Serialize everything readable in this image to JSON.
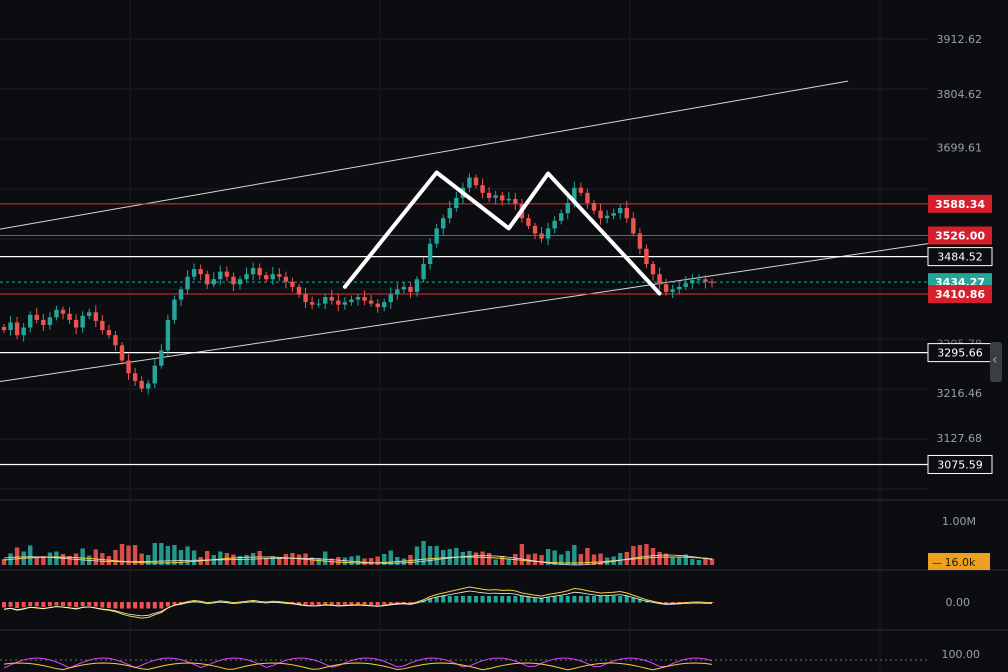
{
  "colors": {
    "background": "#0c0d10",
    "up": "#26a69a",
    "down": "#ef5350",
    "resistance_line": "#e0303a",
    "level_line": "#ffffff",
    "last_price_badge": "#26a69a",
    "volume_badge": "#f0a020",
    "ma_yellow": "#f2d23c",
    "ma_pink": "#e040fb",
    "axis_text": "#9aa0a8"
  },
  "price_axis": {
    "ticks": [
      "3912.62",
      "3804.62",
      "3699.61",
      "3216.46",
      "3127.68"
    ],
    "hidden_tick_fragments": [
      "3295.78"
    ]
  },
  "horizontal_levels": [
    {
      "label": "3588.34",
      "value": 3588.34,
      "style": "red-badge"
    },
    {
      "label": "3526.00",
      "value": 3526.0,
      "style": "red-badge"
    },
    {
      "label": "3484.52",
      "value": 3484.52,
      "style": "white-box"
    },
    {
      "label": "3434.27",
      "value": 3434.27,
      "style": "last-price"
    },
    {
      "label": "3410.86",
      "value": 3410.86,
      "style": "red-badge"
    },
    {
      "label": "3295.66",
      "value": 3295.66,
      "style": "white-box"
    },
    {
      "label": "3075.59",
      "value": 3075.59,
      "style": "white-box"
    }
  ],
  "volume_panel": {
    "axis_label": "1.00M",
    "current_badge": "16.0k"
  },
  "macd_panel": {
    "axis_label": "0.00"
  },
  "rsi_panel": {
    "axis_label": "100.00"
  },
  "chart_data": {
    "type": "candlestick",
    "y_range": [
      3040,
      3950
    ],
    "last_price": 3434.27,
    "candles_approx_close": [
      3340,
      3355,
      3330,
      3345,
      3370,
      3360,
      3350,
      3365,
      3380,
      3372,
      3360,
      3345,
      3368,
      3375,
      3358,
      3340,
      3330,
      3310,
      3280,
      3255,
      3240,
      3225,
      3235,
      3270,
      3300,
      3360,
      3400,
      3420,
      3445,
      3460,
      3450,
      3430,
      3440,
      3455,
      3445,
      3430,
      3440,
      3450,
      3462,
      3448,
      3440,
      3450,
      3445,
      3435,
      3425,
      3410,
      3395,
      3390,
      3392,
      3405,
      3398,
      3390,
      3395,
      3400,
      3405,
      3398,
      3392,
      3385,
      3395,
      3410,
      3420,
      3425,
      3415,
      3440,
      3470,
      3510,
      3540,
      3560,
      3580,
      3600,
      3620,
      3640,
      3625,
      3610,
      3600,
      3605,
      3595,
      3598,
      3588,
      3560,
      3545,
      3530,
      3520,
      3540,
      3555,
      3570,
      3590,
      3620,
      3610,
      3590,
      3575,
      3560,
      3565,
      3570,
      3580,
      3560,
      3530,
      3500,
      3470,
      3450,
      3430,
      3415,
      3420,
      3425,
      3432,
      3438,
      3440,
      3435,
      3434
    ],
    "channel": {
      "upper": [
        [
          0,
          3540
        ],
        [
          120,
          3810
        ]
      ],
      "lower": [
        [
          0,
          3240
        ],
        [
          120,
          3470
        ]
      ]
    },
    "double_top_pattern": [
      3425,
      3650,
      3540,
      3648,
      3412
    ],
    "indicators": [
      "Volume",
      "MACD",
      "RSI"
    ]
  }
}
